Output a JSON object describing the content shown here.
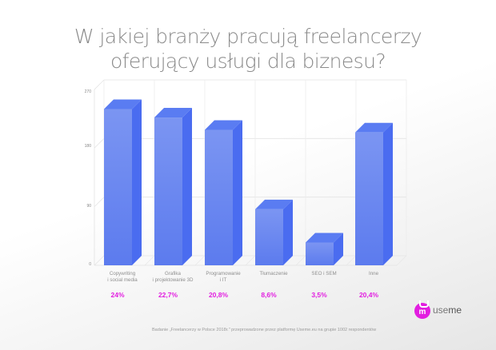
{
  "title": {
    "line1": "W jakiej branży pracują freelancerzy",
    "line2": "oferujący usługi dla biznesu?"
  },
  "colors": {
    "bar_front": "#6f8cf0",
    "bar_side": "#4a6cf0",
    "bar_top": "#5a7cf2",
    "percent": "#e21ee0",
    "title": "#8a8a8a"
  },
  "chart_data": {
    "type": "bar",
    "style": "3d-column",
    "title": "W jakiej branży pracują freelancerzy oferujący usługi dla biznesu?",
    "categories": [
      "Copywriting i social media",
      "Grafika i projektowanie 3D",
      "Programowanie i IT",
      "Tłumaczenie",
      "SEO i SEM",
      "Inne"
    ],
    "values": [
      240,
      227,
      208,
      86,
      35,
      204
    ],
    "percent_labels": [
      "24%",
      "22,7%",
      "20,8%",
      "8,6%",
      "3,5%",
      "20,4%"
    ],
    "yticks": [
      0,
      90,
      180,
      270
    ],
    "ylim": [
      0,
      270
    ],
    "xlabel": "",
    "ylabel": "",
    "grid": true,
    "legend": false
  },
  "axis": {
    "ticks": [
      "270",
      "180",
      "90",
      "0"
    ]
  },
  "categories": [
    {
      "line1": "Copywriting",
      "line2": "i social media",
      "pct": "24%"
    },
    {
      "line1": "Grafika",
      "line2": "i projektowanie 3D",
      "pct": "22,7%"
    },
    {
      "line1": "Programowanie",
      "line2": "i IT",
      "pct": "20,8%"
    },
    {
      "line1": "Tłumaczenie",
      "line2": "",
      "pct": "8,6%"
    },
    {
      "line1": "SEO i SEM",
      "line2": "",
      "pct": "3,5%"
    },
    {
      "line1": "Inne",
      "line2": "",
      "pct": "20,4%"
    }
  ],
  "logo": {
    "glyph": "m",
    "brand_prefix": "use",
    "brand_suffix": "me"
  },
  "footer": "Badanie „Freelancerzy w Polsce 2018r.\" przeprowadzone przez platformę Useme.eu na grupie 1002 respondentów"
}
